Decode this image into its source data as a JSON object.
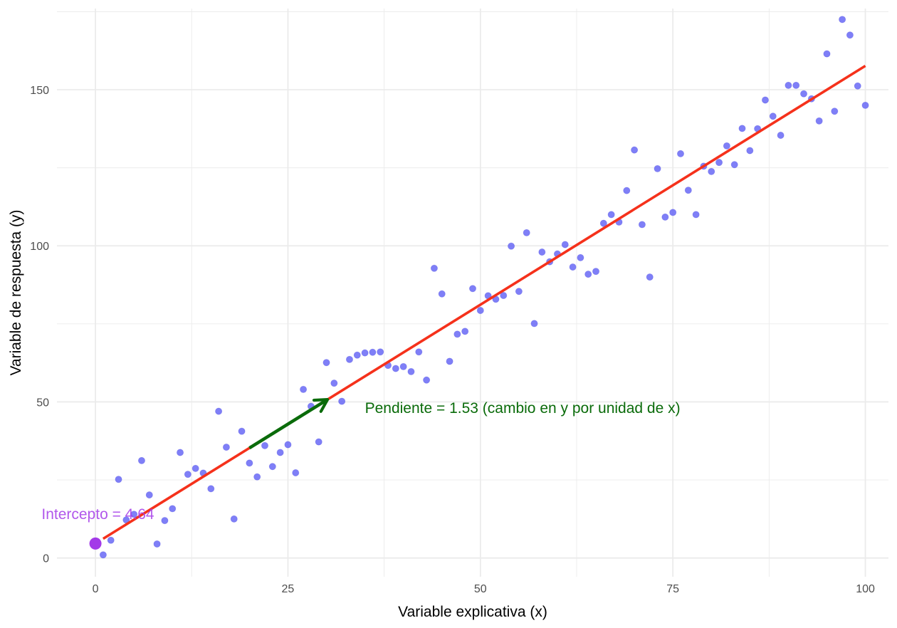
{
  "chart_data": {
    "type": "scatter",
    "title": "",
    "xlabel": "Variable explicativa (x)",
    "ylabel": "Variable de respuesta (y)",
    "xlim": [
      -5,
      103
    ],
    "ylim": [
      -6,
      176
    ],
    "x_ticks": [
      0,
      25,
      50,
      75,
      100
    ],
    "y_ticks": [
      0,
      50,
      100,
      150
    ],
    "x_tick_labels": [
      "0",
      "25",
      "50",
      "75",
      "100"
    ],
    "y_tick_labels": [
      "0",
      "50",
      "100",
      "150"
    ],
    "grid": true,
    "legend": "none",
    "colors": {
      "points": "#5b5bf5",
      "regression_line": "#f5311b",
      "slope_arrow": "#0a6b0a",
      "intercept": "#a33ae8",
      "grid": "#ebebeb"
    },
    "points": {
      "x": [
        1,
        2,
        3,
        4,
        5,
        6,
        7,
        8,
        9,
        10,
        11,
        12,
        13,
        14,
        15,
        16,
        17,
        18,
        19,
        20,
        21,
        22,
        23,
        24,
        25,
        26,
        27,
        28,
        29,
        30,
        31,
        32,
        33,
        34,
        35,
        36,
        37,
        38,
        39,
        40,
        41,
        42,
        43,
        44,
        45,
        46,
        47,
        48,
        49,
        50,
        51,
        52,
        53,
        54,
        55,
        56,
        57,
        58,
        59,
        60,
        61,
        62,
        63,
        64,
        65,
        66,
        67,
        68,
        69,
        70,
        71,
        72,
        73,
        74,
        75,
        76,
        77,
        78,
        79,
        80,
        81,
        82,
        83,
        84,
        85,
        86,
        87,
        88,
        89,
        90,
        91,
        92,
        93,
        94,
        95,
        96,
        97,
        98,
        99,
        100
      ],
      "y": [
        1,
        5.7,
        25.2,
        12.2,
        14,
        31.2,
        20.2,
        4.5,
        12,
        15.8,
        33.8,
        26.8,
        28.7,
        27.2,
        22.2,
        47,
        35.5,
        12.5,
        40.6,
        30.4,
        26,
        36,
        29.3,
        33.8,
        36.3,
        27.3,
        54,
        48.6,
        37.2,
        62.6,
        56,
        50.2,
        63.6,
        65,
        65.7,
        65.9,
        66,
        61.7,
        60.7,
        61.3,
        59.7,
        66,
        57,
        92.8,
        84.6,
        63,
        71.7,
        72.6,
        86.3,
        79.3,
        84,
        82.9,
        84.1,
        99.9,
        85.4,
        104.2,
        75.1,
        98,
        94.9,
        97.4,
        100.4,
        93.2,
        96.2,
        90.9,
        91.8,
        107.2,
        110,
        107.6,
        117.7,
        130.7,
        106.8,
        90,
        124.7,
        109.2,
        110.7,
        129.5,
        117.8,
        110,
        125.5,
        123.8,
        126.7,
        132,
        126,
        137.6,
        130.5,
        137.5,
        146.7,
        141.5,
        135.4,
        151.4,
        151.4,
        148.7,
        147.1,
        140,
        161.5,
        143.1,
        172.5,
        167.5,
        151.2,
        145
      ]
    },
    "regression": {
      "intercept": 4.64,
      "slope": 1.53,
      "x_range": [
        1,
        100
      ]
    },
    "annotations": {
      "slope_text": "Pendiente = 1.53 (cambio en y por unidad de x)",
      "intercept_text": "Intercepto = 4.64",
      "slope_arrow": {
        "x_from": 20,
        "x_to": 30
      },
      "intercept_point": {
        "x": 0,
        "y": 4.64
      },
      "slope_text_anchor": {
        "x": 35,
        "y": 46.5
      },
      "intercept_text_anchor": {
        "x": -7,
        "y": 12.5
      }
    }
  }
}
